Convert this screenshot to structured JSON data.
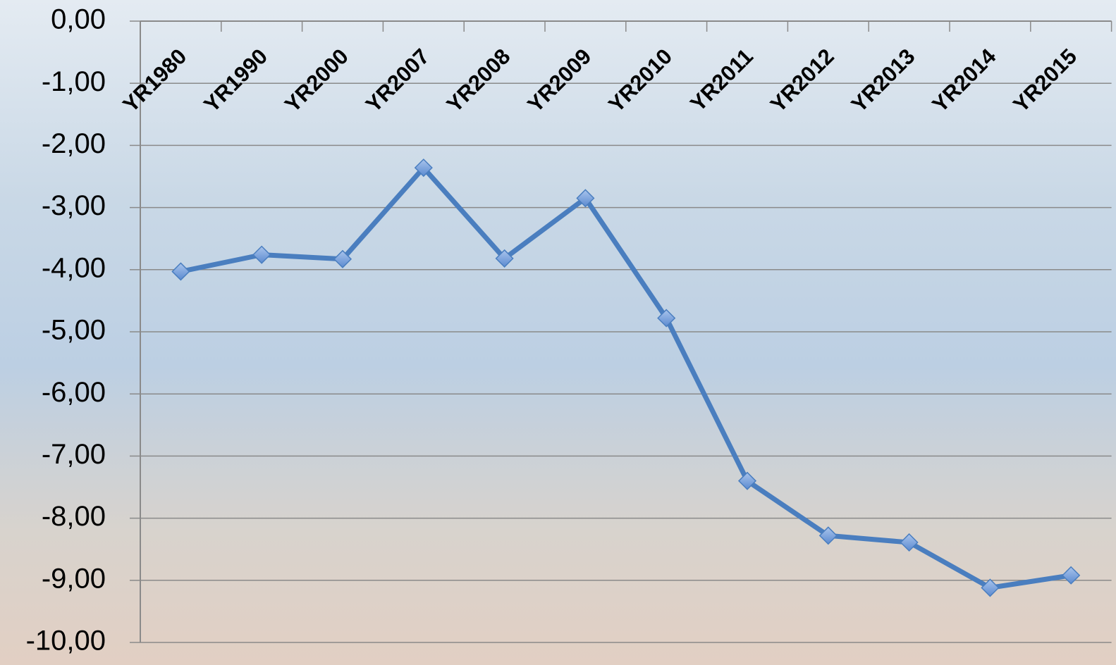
{
  "chart_data": {
    "type": "line",
    "categories": [
      "YR1980",
      "YR1990",
      "YR2000",
      "YR2007",
      "YR2008",
      "YR2009",
      "YR2010",
      "YR2011",
      "YR2012",
      "YR2013",
      "YR2014",
      "YR2015"
    ],
    "series": [
      {
        "color": "#4a7ebf",
        "values": [
          -4.03,
          -3.76,
          -3.83,
          -2.36,
          -3.82,
          -2.85,
          -4.78,
          -7.4,
          -8.28,
          -8.39,
          -9.12,
          -8.92
        ]
      }
    ],
    "ylim": [
      -10,
      0
    ],
    "yticks": [
      {
        "value": 0,
        "label": "0,00"
      },
      {
        "value": -1,
        "label": "-1,00"
      },
      {
        "value": -2,
        "label": "-2,00"
      },
      {
        "value": -3,
        "label": "-3,00"
      },
      {
        "value": -4,
        "label": "-4,00"
      },
      {
        "value": -5,
        "label": "-5,00"
      },
      {
        "value": -6,
        "label": "-6,00"
      },
      {
        "value": -7,
        "label": "-7,00"
      },
      {
        "value": -8,
        "label": "-8,00"
      },
      {
        "value": -9,
        "label": "-9,00"
      },
      {
        "value": -10,
        "label": "-10,00"
      }
    ],
    "grid": true
  }
}
